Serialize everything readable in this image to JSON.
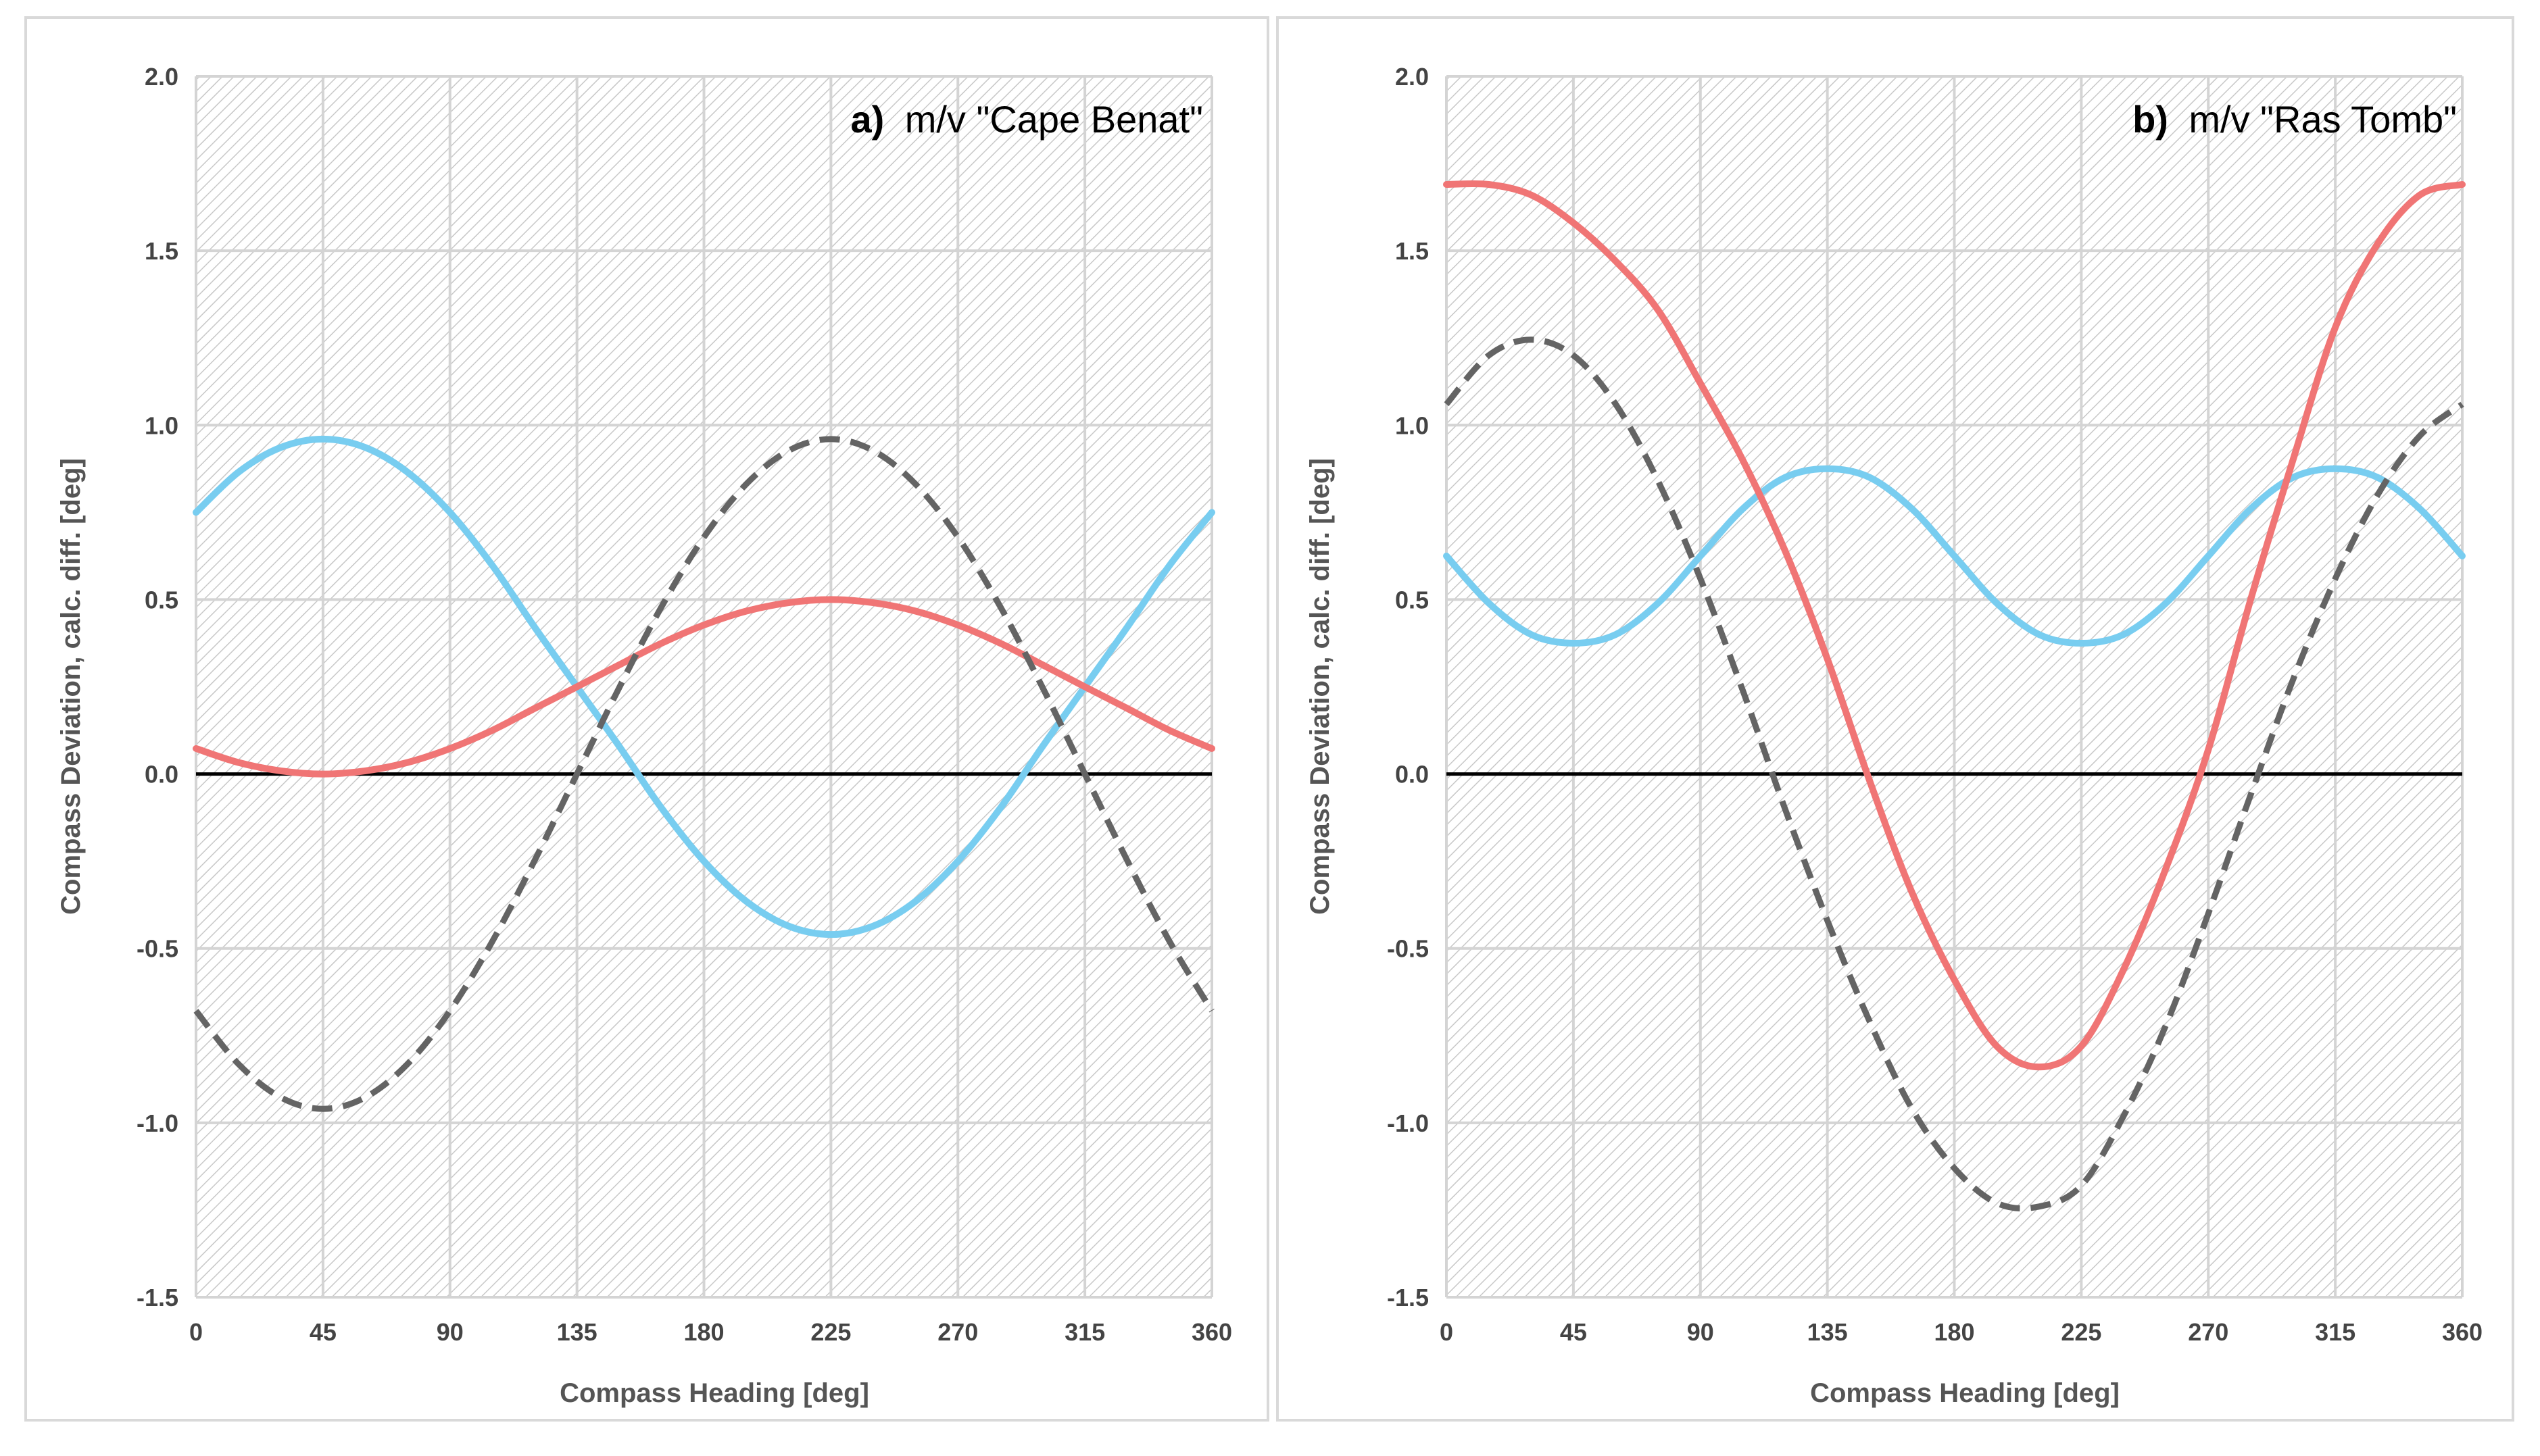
{
  "colors": {
    "red": "#f07575",
    "blue": "#78cdf0",
    "dashed": "#646464",
    "zero_line": "#000000",
    "grid": "#d4d4d4",
    "hatch": "#c8c8c8"
  },
  "chart_data": [
    {
      "type": "line",
      "title_bold": "a)",
      "title": "m/v \"Cape Benat\"",
      "xlabel": "Compass Heading [deg]",
      "ylabel": "Compass Deviation, calc. diff. [deg]",
      "xlim": [
        0,
        360
      ],
      "ylim": [
        -1.5,
        2.0
      ],
      "xticks": [
        0,
        45,
        90,
        135,
        180,
        225,
        270,
        315,
        360
      ],
      "xtick_labels": [
        "0",
        "45",
        "90",
        "135",
        "180",
        "225",
        "270",
        "315",
        "360"
      ],
      "yticks": [
        -1.5,
        -1.0,
        -0.5,
        0.0,
        0.5,
        1.0,
        1.5,
        2.0
      ],
      "ytick_labels": [
        "-1.5",
        "-1.0",
        "-0.5",
        "0.0",
        "0.5",
        "1.0",
        "1.5",
        "2.0"
      ],
      "grid": true,
      "background": "hatched",
      "series": [
        {
          "name": "red",
          "color": "#f07575",
          "style": "solid",
          "x": [
            0,
            15,
            30,
            45,
            60,
            75,
            90,
            105,
            120,
            135,
            150,
            165,
            180,
            195,
            210,
            225,
            240,
            255,
            270,
            285,
            300,
            315,
            330,
            345,
            360
          ],
          "y": [
            0.073,
            0.033,
            0.009,
            0.0,
            0.009,
            0.033,
            0.073,
            0.125,
            0.188,
            0.25,
            0.313,
            0.375,
            0.427,
            0.467,
            0.491,
            0.5,
            0.491,
            0.467,
            0.427,
            0.375,
            0.313,
            0.25,
            0.188,
            0.125,
            0.073
          ]
        },
        {
          "name": "blue",
          "color": "#78cdf0",
          "style": "solid",
          "x": [
            0,
            15,
            30,
            45,
            60,
            75,
            90,
            105,
            120,
            135,
            150,
            165,
            180,
            195,
            210,
            225,
            240,
            255,
            270,
            285,
            300,
            315,
            330,
            345,
            360
          ],
          "y": [
            0.75,
            0.865,
            0.936,
            0.96,
            0.936,
            0.865,
            0.75,
            0.598,
            0.421,
            0.25,
            0.079,
            -0.098,
            -0.25,
            -0.365,
            -0.436,
            -0.46,
            -0.436,
            -0.365,
            -0.25,
            -0.098,
            0.079,
            0.25,
            0.421,
            0.598,
            0.75
          ]
        },
        {
          "name": "dashed",
          "color": "#646464",
          "style": "dashed",
          "x": [
            0,
            15,
            30,
            45,
            60,
            75,
            90,
            105,
            120,
            135,
            150,
            165,
            180,
            195,
            210,
            225,
            240,
            255,
            270,
            285,
            300,
            315,
            330,
            345,
            360
          ],
          "y": [
            -0.679,
            -0.831,
            -0.927,
            -0.96,
            -0.927,
            -0.831,
            -0.679,
            -0.48,
            -0.248,
            0.0,
            0.248,
            0.48,
            0.679,
            0.831,
            0.927,
            0.96,
            0.927,
            0.831,
            0.679,
            0.48,
            0.248,
            0.0,
            -0.248,
            -0.48,
            -0.679
          ]
        }
      ]
    },
    {
      "type": "line",
      "title_bold": "b)",
      "title": "m/v \"Ras Tomb\"",
      "xlabel": "Compass Heading [deg]",
      "ylabel": "Compass Deviation, calc. diff. [deg]",
      "xlim": [
        0,
        360
      ],
      "ylim": [
        -1.5,
        2.0
      ],
      "xticks": [
        0,
        45,
        90,
        135,
        180,
        225,
        270,
        315,
        360
      ],
      "xtick_labels": [
        "0",
        "45",
        "90",
        "135",
        "180",
        "225",
        "270",
        "315",
        "360"
      ],
      "yticks": [
        -1.5,
        -1.0,
        -0.5,
        0.0,
        0.5,
        1.0,
        1.5,
        2.0
      ],
      "ytick_labels": [
        "-1.5",
        "-1.0",
        "-0.5",
        "0.0",
        "0.5",
        "1.0",
        "1.5",
        "2.0"
      ],
      "grid": true,
      "background": "hatched",
      "series": [
        {
          "name": "red",
          "color": "#f07575",
          "style": "solid",
          "x": [
            0,
            15,
            30,
            45,
            60,
            75,
            90,
            105,
            120,
            135,
            150,
            165,
            180,
            195,
            210,
            225,
            240,
            255,
            270,
            285,
            300,
            315,
            330,
            345,
            360
          ],
          "y": [
            1.69,
            1.69,
            1.66,
            1.58,
            1.47,
            1.33,
            1.12,
            0.9,
            0.64,
            0.33,
            -0.02,
            -0.34,
            -0.59,
            -0.78,
            -0.84,
            -0.78,
            -0.56,
            -0.27,
            0.07,
            0.5,
            0.9,
            1.28,
            1.52,
            1.66,
            1.69
          ]
        },
        {
          "name": "blue",
          "color": "#78cdf0",
          "style": "solid",
          "x": [
            0,
            15,
            30,
            45,
            60,
            75,
            90,
            105,
            120,
            135,
            150,
            165,
            180,
            195,
            210,
            225,
            240,
            255,
            270,
            285,
            300,
            315,
            330,
            345,
            360
          ],
          "y": [
            0.625,
            0.49,
            0.4,
            0.375,
            0.4,
            0.49,
            0.625,
            0.76,
            0.85,
            0.875,
            0.85,
            0.76,
            0.625,
            0.49,
            0.4,
            0.375,
            0.4,
            0.49,
            0.625,
            0.76,
            0.85,
            0.875,
            0.85,
            0.76,
            0.625
          ]
        },
        {
          "name": "dashed",
          "color": "#646464",
          "style": "dashed",
          "x": [
            0,
            15,
            30,
            45,
            60,
            75,
            90,
            105,
            120,
            135,
            150,
            165,
            180,
            195,
            210,
            225,
            240,
            255,
            270,
            285,
            300,
            315,
            330,
            345,
            360
          ],
          "y": [
            1.06,
            1.2,
            1.245,
            1.2,
            1.06,
            0.84,
            0.56,
            0.24,
            -0.1,
            -0.42,
            -0.71,
            -0.96,
            -1.13,
            -1.23,
            -1.24,
            -1.18,
            -0.98,
            -0.72,
            -0.4,
            -0.06,
            0.27,
            0.56,
            0.8,
            0.97,
            1.06
          ]
        }
      ]
    }
  ]
}
